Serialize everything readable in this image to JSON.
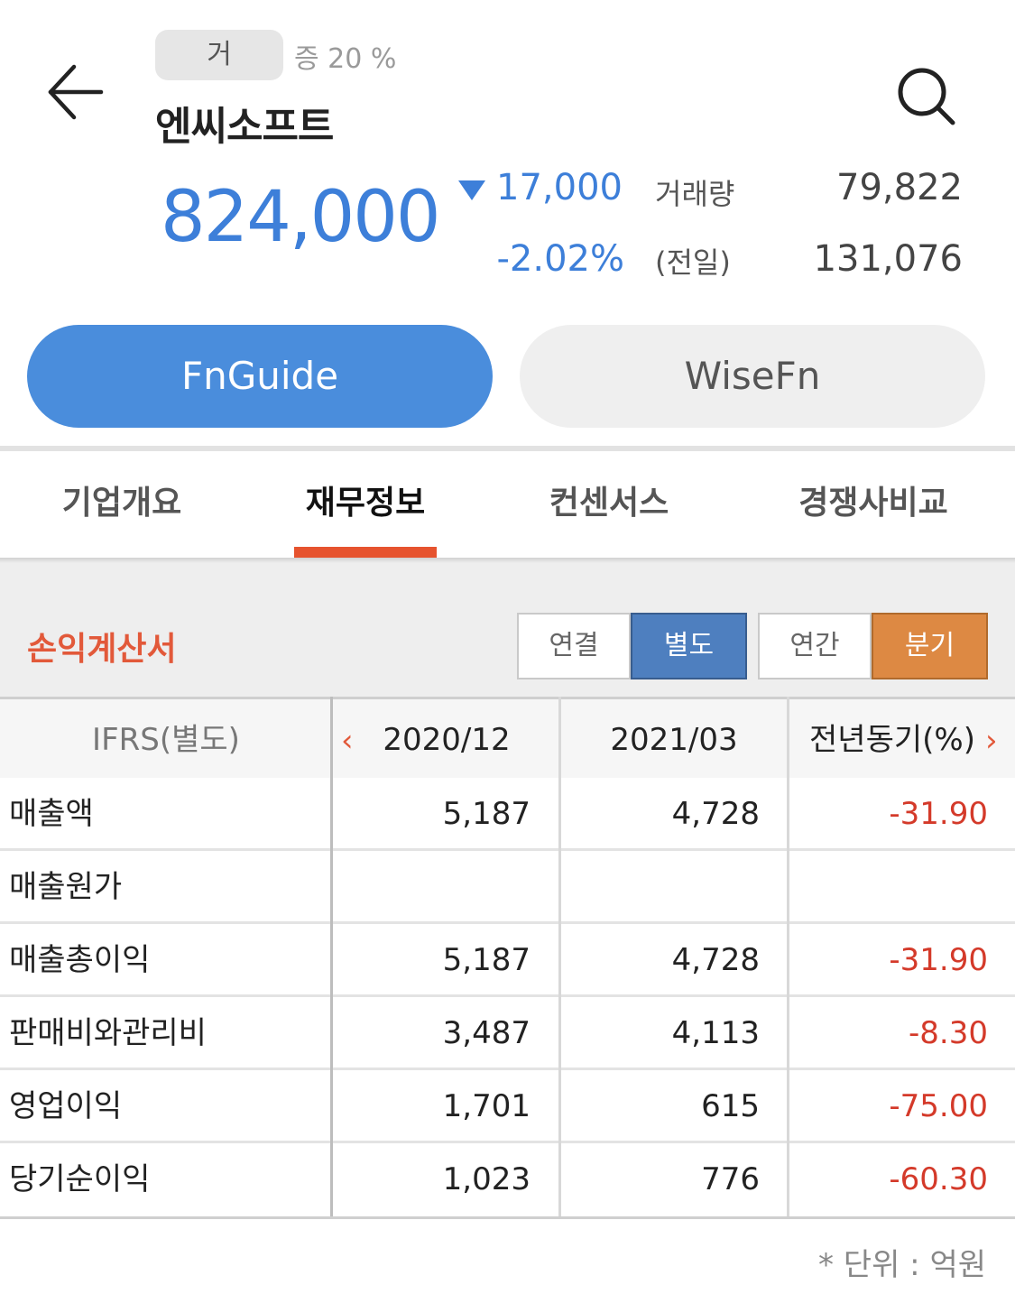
{
  "header": {
    "market_badge": "거",
    "margin_label": "증 20 %",
    "stock_name": "엔씨소프트",
    "price": "824,000",
    "change": "17,000",
    "change_pct": "-2.02%",
    "direction": "down",
    "volume_label": "거래량",
    "prev_label": "(전일)",
    "volume_value": "79,822",
    "prev_value": "131,076",
    "back_icon": "arrow-left-icon",
    "search_icon": "search-icon",
    "accent_color": "#3d7fd9"
  },
  "providers": {
    "fnguide": "FnGuide",
    "wisefn": "WiseFn",
    "selected": "FnGuide"
  },
  "tabs": [
    {
      "label": "기업개요"
    },
    {
      "label": "재무정보"
    },
    {
      "label": "컨센서스"
    },
    {
      "label": "경쟁사비교"
    }
  ],
  "active_tab": "재무정보",
  "section": {
    "title": "손익계산서",
    "scope_options": [
      "연결",
      "별도"
    ],
    "scope_selected": "별도",
    "period_options": [
      "연간",
      "분기"
    ],
    "period_selected": "분기"
  },
  "table": {
    "headers": [
      "IFRS(별도)",
      "2020/12",
      "2021/03",
      "전년동기(%)"
    ],
    "rows": [
      {
        "label": "매출액",
        "v1": "5,187",
        "v2": "4,728",
        "v3": "-31.90"
      },
      {
        "label": "매출원가",
        "v1": "",
        "v2": "",
        "v3": ""
      },
      {
        "label": "매출총이익",
        "v1": "5,187",
        "v2": "4,728",
        "v3": "-31.90"
      },
      {
        "label": "판매비와관리비",
        "v1": "3,487",
        "v2": "4,113",
        "v3": "-8.30"
      },
      {
        "label": "영업이익",
        "v1": "1,701",
        "v2": "615",
        "v3": "-75.00"
      },
      {
        "label": "당기순이익",
        "v1": "1,023",
        "v2": "776",
        "v3": "-60.30"
      }
    ],
    "negative_color": "#d43a2a"
  },
  "footer": {
    "unit_note": "* 단위 : 억원"
  }
}
